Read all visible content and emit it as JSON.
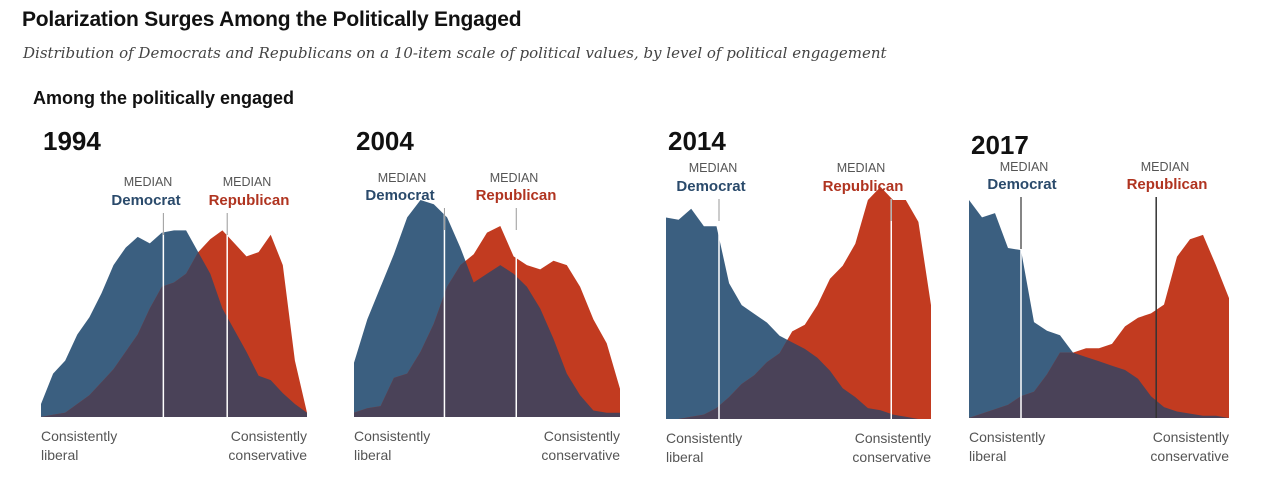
{
  "title": "Polarization Surges Among the Politically Engaged",
  "subtitle": "Distribution of Democrats and Republicans on a 10-item scale of political values, by level of political engagement",
  "section_label": "Among the politically engaged",
  "median_word": "MEDIAN",
  "axis_left": [
    "Consistently",
    "liberal"
  ],
  "axis_right": [
    "Consistently",
    "conservative"
  ],
  "colors": {
    "democrat": "#3b5f80",
    "republican": "#c23b20",
    "overlap": "#4a4258",
    "median_line": "#ffffff"
  },
  "chart_data": [
    {
      "type": "area",
      "title": "1994",
      "xlabel": "",
      "ylabel": "",
      "series": [
        {
          "name": "Democrat",
          "median": 4.6,
          "values": [
            0.06,
            0.2,
            0.26,
            0.38,
            0.46,
            0.57,
            0.7,
            0.78,
            0.83,
            0.8,
            0.85,
            0.86,
            0.86,
            0.76,
            0.66,
            0.5,
            0.4,
            0.3,
            0.19,
            0.17,
            0.11,
            0.06,
            0.02
          ]
        },
        {
          "name": "Republican",
          "median": 7.0,
          "values": [
            0.0,
            0.01,
            0.02,
            0.06,
            0.1,
            0.16,
            0.22,
            0.3,
            0.38,
            0.5,
            0.6,
            0.62,
            0.66,
            0.76,
            0.82,
            0.86,
            0.8,
            0.74,
            0.76,
            0.84,
            0.7,
            0.26,
            0.02
          ]
        }
      ]
    },
    {
      "type": "area",
      "title": "2004",
      "xlabel": "",
      "ylabel": "",
      "series": [
        {
          "name": "Democrat",
          "median": 3.4,
          "values": [
            0.25,
            0.45,
            0.6,
            0.75,
            0.92,
            1.0,
            0.98,
            0.92,
            0.78,
            0.62,
            0.66,
            0.7,
            0.66,
            0.6,
            0.5,
            0.36,
            0.2,
            0.1,
            0.03,
            0.02,
            0.02
          ]
        },
        {
          "name": "Republican",
          "median": 6.1,
          "values": [
            0.02,
            0.04,
            0.05,
            0.18,
            0.2,
            0.3,
            0.43,
            0.6,
            0.7,
            0.75,
            0.85,
            0.88,
            0.74,
            0.7,
            0.68,
            0.72,
            0.7,
            0.6,
            0.45,
            0.34,
            0.13
          ]
        }
      ]
    },
    {
      "type": "area",
      "title": "2014",
      "xlabel": "",
      "ylabel": "",
      "series": [
        {
          "name": "Democrat",
          "median": 2.0,
          "values": [
            0.92,
            0.91,
            0.96,
            0.88,
            0.88,
            0.62,
            0.52,
            0.48,
            0.44,
            0.38,
            0.35,
            0.32,
            0.28,
            0.22,
            0.14,
            0.1,
            0.05,
            0.04,
            0.02,
            0.01,
            0.0,
            0.0
          ]
        },
        {
          "name": "Republican",
          "median": 8.5,
          "values": [
            0.0,
            0.0,
            0.01,
            0.02,
            0.05,
            0.1,
            0.16,
            0.2,
            0.26,
            0.3,
            0.4,
            0.43,
            0.52,
            0.64,
            0.7,
            0.8,
            1.0,
            1.06,
            1.0,
            1.0,
            0.9,
            0.52
          ]
        }
      ]
    },
    {
      "type": "area",
      "title": "2017",
      "xlabel": "",
      "ylabel": "",
      "series": [
        {
          "name": "Democrat",
          "median": 2.0,
          "values": [
            1.0,
            0.92,
            0.94,
            0.78,
            0.77,
            0.44,
            0.4,
            0.38,
            0.3,
            0.28,
            0.26,
            0.24,
            0.22,
            0.18,
            0.1,
            0.05,
            0.03,
            0.02,
            0.01,
            0.01,
            0.0
          ]
        },
        {
          "name": "Republican",
          "median": 7.2,
          "values": [
            0.0,
            0.02,
            0.04,
            0.06,
            0.1,
            0.12,
            0.2,
            0.3,
            0.3,
            0.32,
            0.32,
            0.34,
            0.42,
            0.46,
            0.48,
            0.52,
            0.74,
            0.82,
            0.84,
            0.7,
            0.55
          ]
        }
      ]
    }
  ]
}
